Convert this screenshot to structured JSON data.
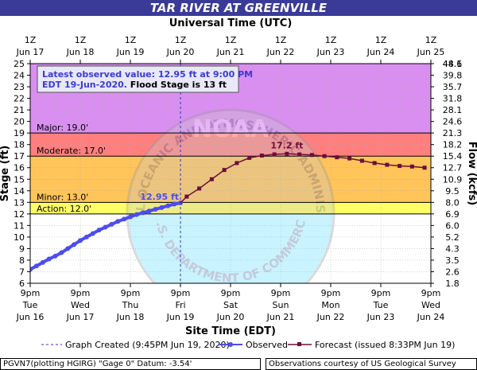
{
  "chart_data": {
    "type": "line",
    "title": "TAR RIVER AT GREENVILLE",
    "top_axis_title": "Universal Time (UTC)",
    "bottom_axis_title": "Site Time (EDT)",
    "ylabel_left": "Stage (ft)",
    "ylabel_right": "Flow (kcfs)",
    "ylim": [
      6,
      25
    ],
    "xlim_hours_from_first_tick": [
      0,
      192
    ],
    "utc_ticks": [
      {
        "line1": "1Z",
        "line2": "Jun 17"
      },
      {
        "line1": "1Z",
        "line2": "Jun 18"
      },
      {
        "line1": "1Z",
        "line2": "Jun 19"
      },
      {
        "line1": "1Z",
        "line2": "Jun 20"
      },
      {
        "line1": "1Z",
        "line2": "Jun 21"
      },
      {
        "line1": "1Z",
        "line2": "Jun 22"
      },
      {
        "line1": "1Z",
        "line2": "Jun 23"
      },
      {
        "line1": "1Z",
        "line2": "Jun 24"
      },
      {
        "line1": "1Z",
        "line2": "Jun 25"
      }
    ],
    "edt_ticks": [
      {
        "line1": "9pm",
        "line2": "Tue",
        "line3": "Jun 16"
      },
      {
        "line1": "9pm",
        "line2": "Wed",
        "line3": "Jun 17"
      },
      {
        "line1": "9pm",
        "line2": "Thu",
        "line3": "Jun 18"
      },
      {
        "line1": "9pm",
        "line2": "Fri",
        "line3": "Jun 19"
      },
      {
        "line1": "9pm",
        "line2": "Sat",
        "line3": "Jun 20"
      },
      {
        "line1": "9pm",
        "line2": "Sun",
        "line3": "Jun 21"
      },
      {
        "line1": "9pm",
        "line2": "Mon",
        "line3": "Jun 22"
      },
      {
        "line1": "9pm",
        "line2": "Tue",
        "line3": "Jun 23"
      },
      {
        "line1": "9pm",
        "line2": "Wed",
        "line3": "Jun 24"
      }
    ],
    "stage_ticks": [
      6,
      7,
      8,
      9,
      10,
      11,
      12,
      13,
      14,
      15,
      16,
      17,
      18,
      19,
      20,
      21,
      22,
      23,
      24,
      25
    ],
    "flow_ticks": [
      {
        "stage": 6,
        "label": "1.8"
      },
      {
        "stage": 7,
        "label": "2.6"
      },
      {
        "stage": 8,
        "label": "3.5"
      },
      {
        "stage": 9,
        "label": "4.3"
      },
      {
        "stage": 10,
        "label": "5.2"
      },
      {
        "stage": 11,
        "label": "6.0"
      },
      {
        "stage": 12,
        "label": "6.9"
      },
      {
        "stage": 13,
        "label": "8.0"
      },
      {
        "stage": 14,
        "label": "9.5"
      },
      {
        "stage": 15,
        "label": "10.9"
      },
      {
        "stage": 16,
        "label": "12.7"
      },
      {
        "stage": 17,
        "label": "15.4"
      },
      {
        "stage": 18,
        "label": "18.2"
      },
      {
        "stage": 19,
        "label": "21.3"
      },
      {
        "stage": 20,
        "label": "24.6"
      },
      {
        "stage": 21,
        "label": "28.1"
      },
      {
        "stage": 22,
        "label": "31.8"
      },
      {
        "stage": 23,
        "label": "35.7"
      },
      {
        "stage": 24,
        "label": "39.8"
      },
      {
        "stage": 25,
        "label": "44.1"
      },
      {
        "stage": 26,
        "label": "48.6"
      }
    ],
    "bands": [
      {
        "name": "Major",
        "from": 19,
        "to": 25,
        "color": "#d98ff0",
        "label": "Major: 19.0'"
      },
      {
        "name": "Moderate",
        "from": 17,
        "to": 19,
        "color": "#ff7f7f",
        "label": "Moderate: 17.0'"
      },
      {
        "name": "Minor",
        "from": 13,
        "to": 17,
        "color": "#ffc45a",
        "label": "Minor: 13.0'"
      },
      {
        "name": "Action",
        "from": 12,
        "to": 13,
        "color": "#ffff66",
        "label": "Action: 12.0'"
      }
    ],
    "series": [
      {
        "name": "Observed",
        "color": "#4c4cf0",
        "x": [
          0,
          3,
          6,
          9,
          12,
          15,
          18,
          21,
          24,
          27,
          30,
          33,
          36,
          39,
          42,
          45,
          48,
          51,
          54,
          57,
          60,
          63,
          66,
          69,
          72
        ],
        "y": [
          7.2,
          7.5,
          7.8,
          8.1,
          8.35,
          8.65,
          9.0,
          9.35,
          9.7,
          10.0,
          10.3,
          10.6,
          10.85,
          11.1,
          11.35,
          11.55,
          11.75,
          11.95,
          12.1,
          12.25,
          12.4,
          12.55,
          12.7,
          12.85,
          12.95
        ]
      },
      {
        "name": "Forecast",
        "color": "#6b0f3a",
        "x": [
          75,
          81,
          87,
          93,
          99,
          105,
          111,
          117,
          123,
          129,
          135,
          141,
          147,
          153,
          159,
          165,
          171,
          177,
          183,
          189
        ],
        "y": [
          13.5,
          14.2,
          15.0,
          15.8,
          16.4,
          16.85,
          17.05,
          17.15,
          17.2,
          17.15,
          17.1,
          17.0,
          16.9,
          16.8,
          16.6,
          16.4,
          16.25,
          16.15,
          16.1,
          16.0
        ]
      }
    ],
    "graph_created_x": 72,
    "annotations": {
      "observed_label": "12.95 ft",
      "forecast_label": "17.2 ft",
      "info_box": {
        "line1": "Latest observed value: 12.95 ft at 9:00 PM",
        "line2a": "EDT 19-Jun-2020.",
        "line2b": " Flood Stage is 13 ft"
      }
    },
    "legend": {
      "graph_created": "Graph Created (9:45PM Jun 19, 2020)",
      "observed": "Observed",
      "forecast": "Forecast (issued 8:33PM Jun 19)"
    },
    "footer_left": "PGVN7(plotting HGIRG) \"Gage 0\" Datum: -3.54'",
    "footer_right": "Observations courtesy of US Geological Survey",
    "watermark": {
      "arc_top": "NATIONAL OCEANIC AND ATMOSPHERIC ADMINISTRATION",
      "arc_bottom": "U.S. DEPARTMENT OF COMMERCE",
      "center": "NOAA"
    }
  }
}
